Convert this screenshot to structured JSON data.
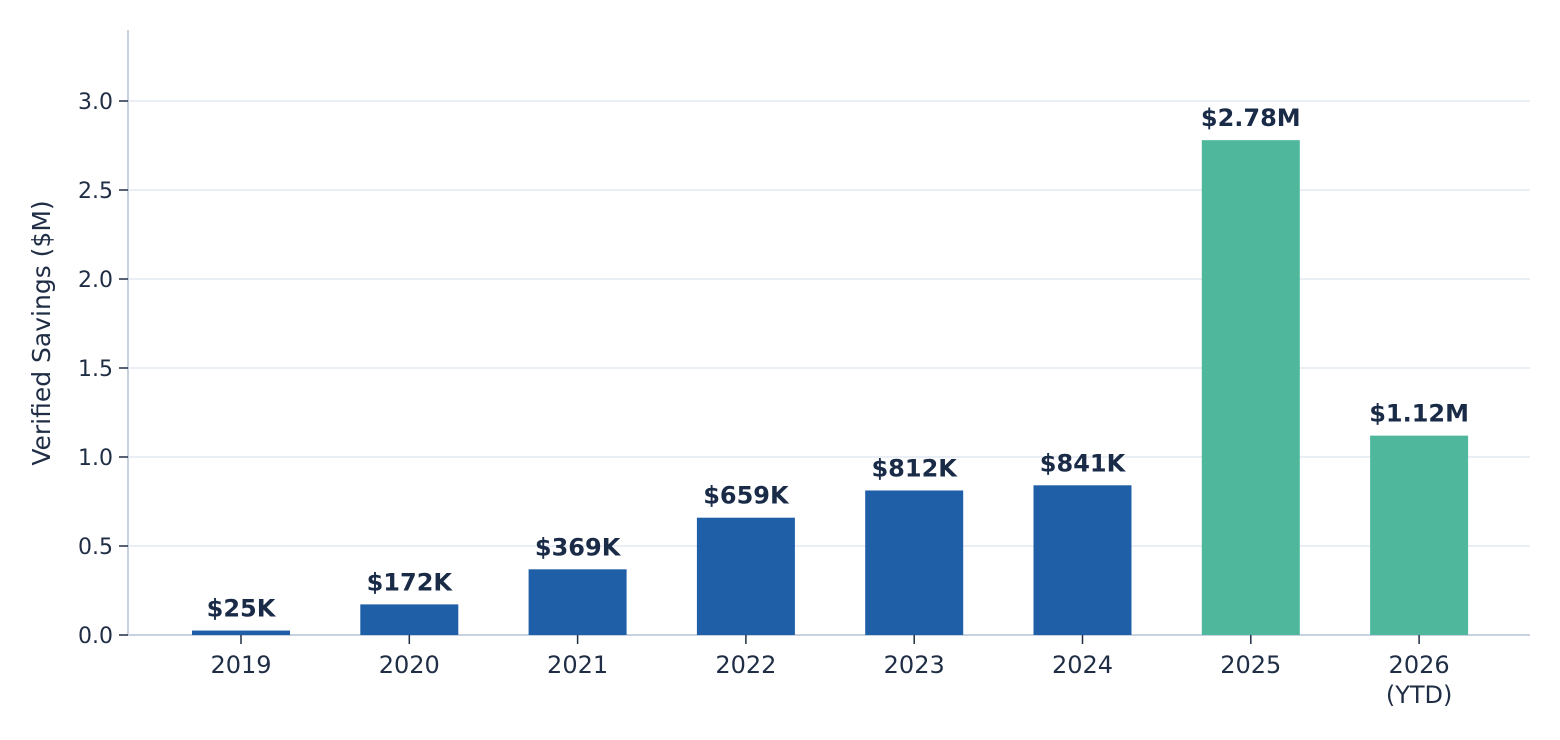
{
  "chart_data": {
    "type": "bar",
    "title": "",
    "xlabel": "",
    "ylabel": "Verified Savings ($M)",
    "categories": [
      "2019",
      "2020",
      "2021",
      "2022",
      "2023",
      "2024",
      "2025",
      "2026\n(YTD)"
    ],
    "values": [
      0.025,
      0.172,
      0.369,
      0.659,
      0.812,
      0.841,
      2.78,
      1.12
    ],
    "data_labels": [
      "$25K",
      "$172K",
      "$369K",
      "$659K",
      "$812K",
      "$841K",
      "$2.78M",
      "$1.12M"
    ],
    "bar_colors": [
      "#1f5fa7",
      "#1f5fa7",
      "#1f5fa7",
      "#1f5fa7",
      "#1f5fa7",
      "#1f5fa7",
      "#4fb89c",
      "#4fb89c"
    ],
    "y_ticks": [
      "0.0",
      "0.5",
      "1.0",
      "1.5",
      "2.0",
      "2.5",
      "3.0"
    ],
    "ylim": [
      0,
      3.4
    ],
    "grid": "horizontal",
    "legend": "none"
  }
}
